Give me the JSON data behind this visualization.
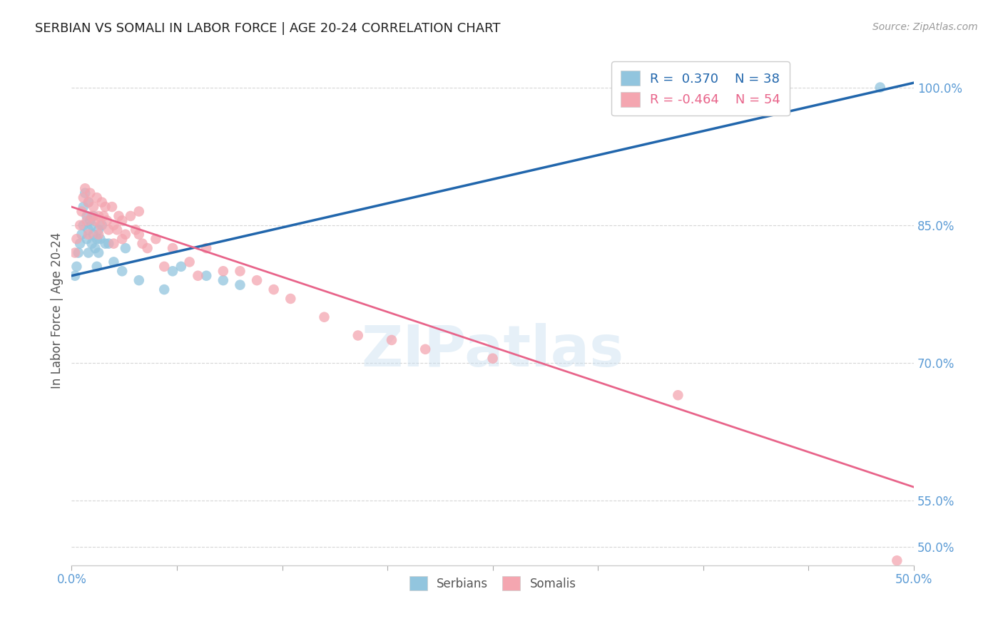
{
  "title": "SERBIAN VS SOMALI IN LABOR FORCE | AGE 20-24 CORRELATION CHART",
  "source": "Source: ZipAtlas.com",
  "ylabel": "In Labor Force | Age 20-24",
  "y_ticks": [
    50.0,
    55.0,
    70.0,
    85.0,
    100.0
  ],
  "y_tick_labels": [
    "50.0%",
    "55.0%",
    "70.0%",
    "85.0%",
    "100.0%"
  ],
  "x_range": [
    0.0,
    0.5
  ],
  "y_range": [
    48.0,
    103.5
  ],
  "blue_line_x0": 0.0,
  "blue_line_y0": 79.5,
  "blue_line_x1": 0.5,
  "blue_line_y1": 100.5,
  "pink_line_x0": 0.0,
  "pink_line_y0": 87.0,
  "pink_line_x1": 0.5,
  "pink_line_y1": 56.5,
  "blue_color": "#92c5de",
  "pink_color": "#f4a6b0",
  "blue_line_color": "#2166ac",
  "pink_line_color": "#e8648a",
  "background_color": "#ffffff",
  "grid_color": "#cccccc",
  "axis_label_color": "#5b9bd5",
  "title_color": "#222222",
  "source_color": "#999999",
  "ylabel_color": "#555555",
  "blue_scatter_x": [
    0.002,
    0.003,
    0.004,
    0.005,
    0.006,
    0.007,
    0.007,
    0.008,
    0.009,
    0.009,
    0.01,
    0.01,
    0.01,
    0.011,
    0.012,
    0.012,
    0.013,
    0.013,
    0.014,
    0.015,
    0.015,
    0.016,
    0.016,
    0.017,
    0.018,
    0.02,
    0.022,
    0.025,
    0.03,
    0.032,
    0.04,
    0.055,
    0.06,
    0.065,
    0.08,
    0.09,
    0.1,
    0.48
  ],
  "blue_scatter_y": [
    79.5,
    80.5,
    82.0,
    83.0,
    84.0,
    85.0,
    87.0,
    88.5,
    83.5,
    86.0,
    82.0,
    84.5,
    87.5,
    85.5,
    83.0,
    85.0,
    84.0,
    86.0,
    82.5,
    83.5,
    80.5,
    82.0,
    84.5,
    83.5,
    85.0,
    83.0,
    83.0,
    81.0,
    80.0,
    82.5,
    79.0,
    78.0,
    80.0,
    80.5,
    79.5,
    79.0,
    78.5,
    100.0
  ],
  "pink_scatter_x": [
    0.002,
    0.003,
    0.005,
    0.006,
    0.007,
    0.008,
    0.009,
    0.01,
    0.01,
    0.011,
    0.012,
    0.013,
    0.014,
    0.015,
    0.016,
    0.016,
    0.017,
    0.018,
    0.019,
    0.02,
    0.021,
    0.022,
    0.024,
    0.025,
    0.025,
    0.027,
    0.028,
    0.03,
    0.03,
    0.032,
    0.035,
    0.038,
    0.04,
    0.04,
    0.042,
    0.045,
    0.05,
    0.055,
    0.06,
    0.07,
    0.075,
    0.08,
    0.09,
    0.1,
    0.11,
    0.12,
    0.13,
    0.15,
    0.17,
    0.19,
    0.21,
    0.25,
    0.36,
    0.49
  ],
  "pink_scatter_y": [
    82.0,
    83.5,
    85.0,
    86.5,
    88.0,
    89.0,
    85.5,
    87.5,
    84.0,
    88.5,
    86.0,
    87.0,
    85.5,
    88.0,
    86.0,
    84.0,
    85.0,
    87.5,
    86.0,
    87.0,
    85.5,
    84.5,
    87.0,
    85.0,
    83.0,
    84.5,
    86.0,
    85.5,
    83.5,
    84.0,
    86.0,
    84.5,
    86.5,
    84.0,
    83.0,
    82.5,
    83.5,
    80.5,
    82.5,
    81.0,
    79.5,
    82.5,
    80.0,
    80.0,
    79.0,
    78.0,
    77.0,
    75.0,
    73.0,
    72.5,
    71.5,
    70.5,
    66.5,
    48.5
  ]
}
